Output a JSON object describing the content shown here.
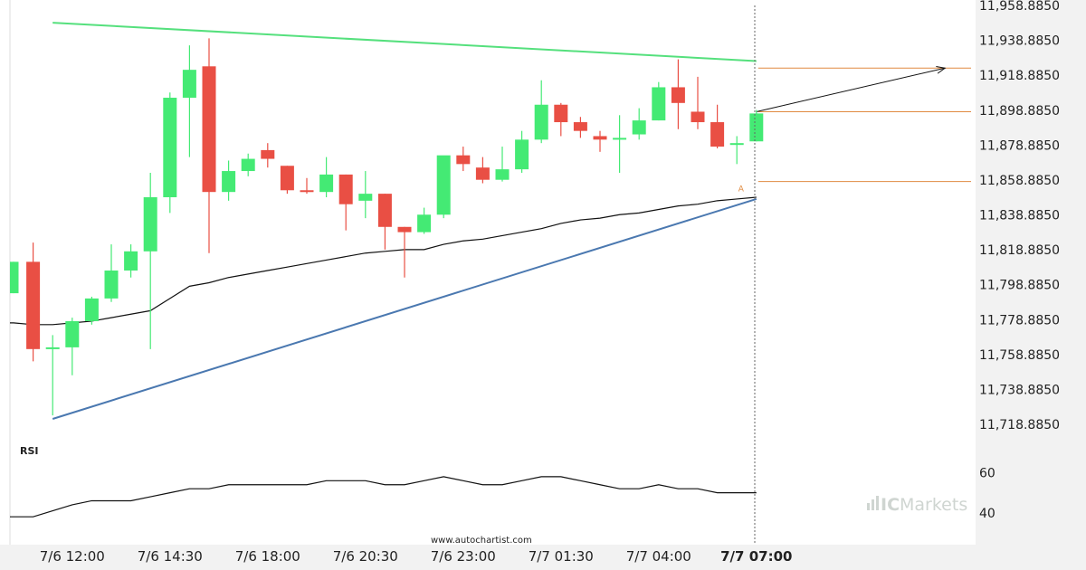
{
  "chart_data": {
    "type": "candlestick",
    "y_ticks": [
      "11,958.8850",
      "11,938.8850",
      "11,918.8850",
      "11,898.8850",
      "11,878.8850",
      "11,858.8850",
      "11,838.8850",
      "11,818.8850",
      "11,798.8850",
      "11,778.8850",
      "11,758.8850",
      "11,738.8850",
      "11,718.8850"
    ],
    "y_tick_values": [
      11958.885,
      11938.885,
      11918.885,
      11898.885,
      11878.885,
      11858.885,
      11838.885,
      11818.885,
      11798.885,
      11778.885,
      11758.885,
      11738.885,
      11718.885
    ],
    "ylim": [
      11710,
      11963
    ],
    "x_ticks": [
      {
        "label": "7/6 12:00",
        "bar": 3
      },
      {
        "label": "7/6 14:30",
        "bar": 8
      },
      {
        "label": "7/6 18:00",
        "bar": 13
      },
      {
        "label": "7/6 20:30",
        "bar": 18
      },
      {
        "label": "7/6 23:00",
        "bar": 23
      },
      {
        "label": "7/7 01:30",
        "bar": 28
      },
      {
        "label": "7/7 04:00",
        "bar": 33
      },
      {
        "label": "7/7 07:00",
        "bar": 38,
        "bold": true
      }
    ],
    "candles": [
      {
        "o": 11794,
        "h": 11812,
        "l": 11794,
        "c": 11812
      },
      {
        "o": 11812,
        "h": 11823,
        "l": 11755,
        "c": 11762
      },
      {
        "o": 11762,
        "h": 11770,
        "l": 11724,
        "c": 11763
      },
      {
        "o": 11763,
        "h": 11780,
        "l": 11747,
        "c": 11778
      },
      {
        "o": 11778,
        "h": 11792,
        "l": 11776,
        "c": 11791
      },
      {
        "o": 11791,
        "h": 11822,
        "l": 11789,
        "c": 11807
      },
      {
        "o": 11807,
        "h": 11822,
        "l": 11803,
        "c": 11818
      },
      {
        "o": 11818,
        "h": 11863,
        "l": 11762,
        "c": 11849
      },
      {
        "o": 11849,
        "h": 11909,
        "l": 11840,
        "c": 11906
      },
      {
        "o": 11906,
        "h": 11936,
        "l": 11872,
        "c": 11922
      },
      {
        "o": 11924,
        "h": 11940,
        "l": 11817,
        "c": 11852
      },
      {
        "o": 11852,
        "h": 11870,
        "l": 11847,
        "c": 11864
      },
      {
        "o": 11864,
        "h": 11874,
        "l": 11861,
        "c": 11871
      },
      {
        "o": 11876,
        "h": 11880,
        "l": 11866,
        "c": 11871
      },
      {
        "o": 11867,
        "h": 11867,
        "l": 11851,
        "c": 11853
      },
      {
        "o": 11853,
        "h": 11860,
        "l": 11851,
        "c": 11852
      },
      {
        "o": 11852,
        "h": 11872,
        "l": 11849,
        "c": 11862
      },
      {
        "o": 11862,
        "h": 11862,
        "l": 11830,
        "c": 11845
      },
      {
        "o": 11847,
        "h": 11864,
        "l": 11837,
        "c": 11851
      },
      {
        "o": 11851,
        "h": 11851,
        "l": 11819,
        "c": 11832
      },
      {
        "o": 11832,
        "h": 11832,
        "l": 11803,
        "c": 11829
      },
      {
        "o": 11829,
        "h": 11843,
        "l": 11828,
        "c": 11839
      },
      {
        "o": 11839,
        "h": 11872,
        "l": 11837,
        "c": 11873
      },
      {
        "o": 11873,
        "h": 11878,
        "l": 11864,
        "c": 11868
      },
      {
        "o": 11866,
        "h": 11872,
        "l": 11857,
        "c": 11859
      },
      {
        "o": 11859,
        "h": 11878,
        "l": 11858,
        "c": 11865
      },
      {
        "o": 11865,
        "h": 11887,
        "l": 11863,
        "c": 11882
      },
      {
        "o": 11882,
        "h": 11916,
        "l": 11880,
        "c": 11902
      },
      {
        "o": 11902,
        "h": 11903,
        "l": 11884,
        "c": 11892
      },
      {
        "o": 11892,
        "h": 11895,
        "l": 11883,
        "c": 11887
      },
      {
        "o": 11884,
        "h": 11887,
        "l": 11875,
        "c": 11882
      },
      {
        "o": 11883,
        "h": 11896,
        "l": 11863,
        "c": 11883
      },
      {
        "o": 11885,
        "h": 11900,
        "l": 11882,
        "c": 11893
      },
      {
        "o": 11893,
        "h": 11915,
        "l": 11893,
        "c": 11912
      },
      {
        "o": 11912,
        "h": 11928,
        "l": 11888,
        "c": 11903
      },
      {
        "o": 11898,
        "h": 11918,
        "l": 11888,
        "c": 11892
      },
      {
        "o": 11892,
        "h": 11902,
        "l": 11877,
        "c": 11878
      },
      {
        "o": 11879,
        "h": 11884,
        "l": 11868,
        "c": 11880
      },
      {
        "o": 11881,
        "h": 11899,
        "l": 11881,
        "c": 11897
      }
    ],
    "moving_average": [
      11777,
      11776,
      11776,
      11777,
      11778,
      11780,
      11782,
      11784,
      11791,
      11798,
      11800,
      11803,
      11805,
      11807,
      11809,
      11811,
      11813,
      11815,
      11817,
      11818,
      11819,
      11819,
      11822,
      11824,
      11825,
      11827,
      11829,
      11831,
      11834,
      11836,
      11837,
      11839,
      11840,
      11842,
      11844,
      11845,
      11847,
      11848,
      11849
    ],
    "resistance_line": {
      "from_bar": 2,
      "from": 11949,
      "to_bar": 38,
      "to": 11927
    },
    "support_line": {
      "from_bar": 2,
      "from": 11722,
      "to_bar": 38,
      "to": 11848
    },
    "forecast_arrow": {
      "from_bar": 38,
      "from": 11898,
      "to_bar": 47,
      "to": 11923
    },
    "horizontal_levels": [
      11923,
      11898,
      11858
    ],
    "point_label": "A",
    "rsi": {
      "label": "RSI",
      "ticks": [
        "60",
        "40"
      ],
      "tick_values": [
        60,
        40
      ],
      "ylim": [
        25,
        76
      ],
      "values": [
        38,
        38,
        41,
        44,
        46,
        46,
        46,
        48,
        50,
        52,
        52,
        54,
        54,
        54,
        54,
        54,
        56,
        56,
        56,
        54,
        54,
        56,
        58,
        56,
        54,
        54,
        56,
        58,
        58,
        56,
        54,
        52,
        52,
        54,
        52,
        52,
        50,
        50,
        50
      ]
    },
    "current_time_label": "7/7 07:00",
    "watermark_url": "www.autochartist.com",
    "brand_a": "IC",
    "brand_b": "Markets",
    "colors": {
      "up": "#44ea74",
      "down": "#e94f44",
      "resistance": "#55e07d",
      "support": "#4a78b0",
      "levels": "#e08a40",
      "ma": "#111111",
      "rsi": "#111111",
      "axis_bg": "#f2f2f2"
    }
  }
}
